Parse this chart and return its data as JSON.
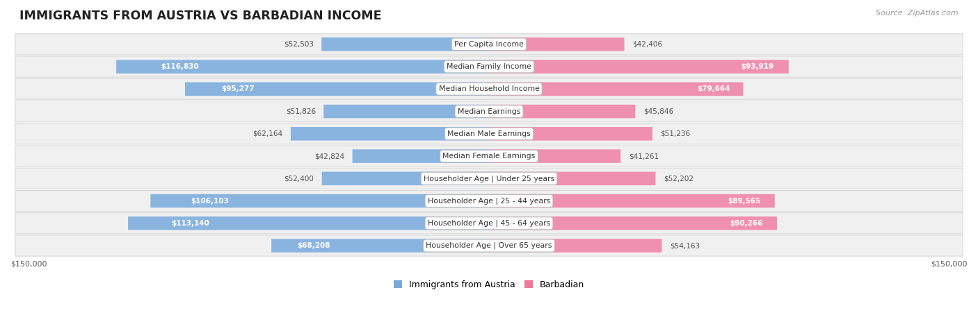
{
  "title": "IMMIGRANTS FROM AUSTRIA VS BARBADIAN INCOME",
  "source": "Source: ZipAtlas.com",
  "categories": [
    "Per Capita Income",
    "Median Family Income",
    "Median Household Income",
    "Median Earnings",
    "Median Male Earnings",
    "Median Female Earnings",
    "Householder Age | Under 25 years",
    "Householder Age | 25 - 44 years",
    "Householder Age | 45 - 64 years",
    "Householder Age | Over 65 years"
  ],
  "austria_values": [
    52503,
    116830,
    95277,
    51826,
    62164,
    42824,
    52400,
    106103,
    113140,
    68208
  ],
  "barbadian_values": [
    42406,
    93919,
    79664,
    45846,
    51236,
    41261,
    52202,
    89565,
    90266,
    54163
  ],
  "austria_color": "#8ab4e0",
  "barbadian_color": "#f090b0",
  "austria_legend_color": "#7aa8d8",
  "barbadian_legend_color": "#f07898",
  "max_value": 150000,
  "x_label_left": "$150,000",
  "x_label_right": "$150,000",
  "legend_austria": "Immigrants from Austria",
  "legend_barbadian": "Barbadian",
  "austria_white_threshold": 65000,
  "barbadian_white_threshold": 65000
}
